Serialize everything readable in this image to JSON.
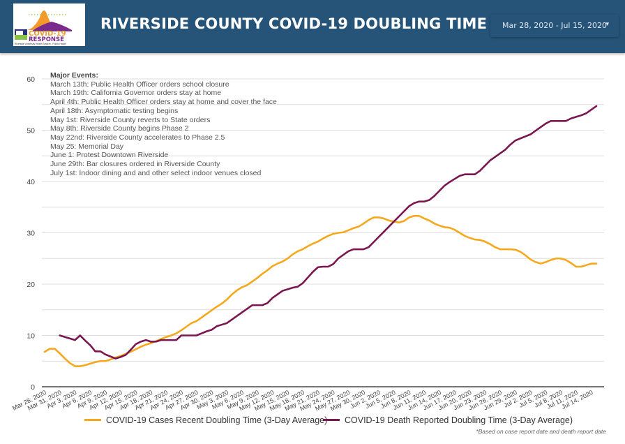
{
  "header": {
    "logo": {
      "line1": "COVID-19",
      "line2": "RESPONSE",
      "subtitle": "Riverside University Health System - Public Health"
    },
    "title": "RIVERSIDE COUNTY COVID-19 DOUBLING TIME",
    "date_range": {
      "label": "Mar 28, 2020 - Jul 15, 2020",
      "icon": "caret-down-icon"
    }
  },
  "events": {
    "heading": "Major Events:",
    "items": [
      "March 13th: Public Health Officer orders school closure",
      "March 19th: California Governor orders stay at home",
      "April 4th: Public Health Officer orders stay at home and cover the face",
      "April 18th: Asymptomatic testing begins",
      "May 1st: Riverside County reverts to State orders",
      "May 8th: Riverside County begins Phase 2",
      "May 22nd: Riverside County accelerates to Phase 2.5",
      "May 25: Memorial Day",
      "June 1: Protest Downtown Riverside",
      "June 29th: Bar closures ordered in Riverside County",
      "July 1st: Indoor dining and and other select indoor venues closed"
    ]
  },
  "footnote": "*Based on case report date and death report date",
  "colors": {
    "header_bg": "#265479",
    "cases": "#F5A81C",
    "deaths": "#7A1650",
    "grid": "#dddddd"
  },
  "chart_data": {
    "type": "line",
    "title": "Riverside County COVID-19 Doubling Time",
    "xlabel": "",
    "ylabel": "",
    "ylim": [
      0,
      60
    ],
    "yticks": [
      0,
      10,
      20,
      30,
      40,
      50,
      60
    ],
    "grid": true,
    "grid_step": 5,
    "legend_position": "bottom",
    "x_start": "2020-03-28",
    "x_end": "2020-07-15",
    "xtick_labels": [
      "Mar 28, 2020",
      "Mar 31, 2020",
      "Apr 3, 2020",
      "Apr 6, 2020",
      "Apr 9, 2020",
      "Apr 12, 2020",
      "Apr 15, 2020",
      "Apr 18, 2020",
      "Apr 21, 2020",
      "Apr 24, 2020",
      "Apr 27, 2020",
      "Apr 30, 2020",
      "May 3, 2020",
      "May 6, 2020",
      "May 9, 2020",
      "May 12, 2020",
      "May 15, 2020",
      "May 18, 2020",
      "May 21, 2020",
      "May 24, 2020",
      "May 27, 2020",
      "May 30, 2020",
      "Jun 2, 2020",
      "Jun 5, 2020",
      "Jun 8, 2020",
      "Jun 11, 2020",
      "Jun 14, 2020",
      "Jun 17, 2020",
      "Jun 20, 2020",
      "Jun 23, 2020",
      "Jun 26, 2020",
      "Jun 29, 2020",
      "Jul 2, 2020",
      "Jul 5, 2020",
      "Jul 8, 2020",
      "Jul 11, 2020",
      "Jul 14, 2020"
    ],
    "series": [
      {
        "name": "COVID-19 Cases Recent Doubling Time (3-Day Average)",
        "color": "#F5A81C",
        "start_day_offset": 0,
        "values": [
          6.8,
          7.4,
          7.4,
          6.5,
          5.5,
          4.6,
          4.0,
          4.0,
          4.2,
          4.5,
          4.8,
          5.0,
          5.0,
          5.3,
          5.7,
          6.0,
          6.4,
          6.8,
          7.3,
          7.8,
          8.2,
          8.5,
          8.9,
          9.3,
          9.7,
          10.0,
          10.4,
          11.0,
          11.7,
          12.4,
          12.8,
          13.5,
          14.2,
          14.9,
          15.6,
          16.2,
          17.0,
          18.0,
          18.8,
          19.4,
          19.8,
          20.5,
          21.2,
          22.0,
          22.7,
          23.5,
          24.0,
          24.4,
          25.0,
          25.8,
          26.4,
          26.8,
          27.4,
          27.9,
          28.3,
          28.9,
          29.4,
          29.8,
          30.0,
          30.1,
          30.5,
          30.9,
          31.2,
          31.8,
          32.5,
          33.0,
          33.0,
          32.8,
          32.4,
          32.2,
          32.0,
          32.3,
          33.0,
          33.3,
          33.3,
          32.8,
          32.4,
          31.8,
          31.4,
          31.1,
          31.0,
          30.6,
          30.0,
          29.4,
          29.0,
          28.7,
          28.6,
          28.3,
          27.8,
          27.2,
          26.8,
          26.8,
          26.8,
          26.7,
          26.3,
          25.6,
          24.8,
          24.3,
          24.0,
          24.3,
          24.7,
          25.0,
          25.0,
          24.7,
          24.1,
          23.4,
          23.4,
          23.7,
          24.0,
          24.0
        ]
      },
      {
        "name": "COVID-19 Death Reported Doubling Time (3-Day Average)",
        "color": "#7A1650",
        "start_day_offset": 3,
        "values": [
          10.0,
          9.7,
          9.4,
          9.1,
          10.0,
          9.0,
          8.1,
          6.9,
          6.9,
          6.3,
          5.9,
          5.5,
          5.8,
          6.2,
          7.2,
          8.3,
          8.8,
          9.1,
          8.8,
          8.8,
          9.1,
          9.1,
          9.1,
          9.1,
          10.0,
          10.0,
          10.0,
          10.0,
          10.4,
          10.8,
          11.1,
          11.8,
          12.1,
          12.4,
          13.1,
          13.8,
          14.5,
          15.2,
          15.9,
          15.9,
          15.9,
          16.3,
          17.3,
          18.0,
          18.7,
          19.0,
          19.3,
          19.5,
          20.2,
          21.3,
          22.4,
          23.3,
          23.4,
          23.4,
          23.9,
          25.0,
          25.7,
          26.4,
          26.8,
          26.8,
          26.8,
          27.2,
          28.2,
          29.2,
          30.2,
          31.2,
          32.2,
          33.2,
          34.2,
          35.2,
          35.8,
          36.1,
          36.1,
          36.4,
          37.2,
          38.2,
          39.2,
          39.9,
          40.5,
          41.1,
          41.4,
          41.4,
          41.4,
          42.1,
          43.1,
          44.1,
          44.8,
          45.5,
          46.2,
          47.2,
          48.0,
          48.4,
          48.8,
          49.2,
          49.9,
          50.6,
          51.3,
          51.8,
          51.8,
          51.8,
          51.8,
          52.3,
          52.6,
          52.9,
          53.3,
          54.0,
          54.7
        ]
      }
    ]
  }
}
